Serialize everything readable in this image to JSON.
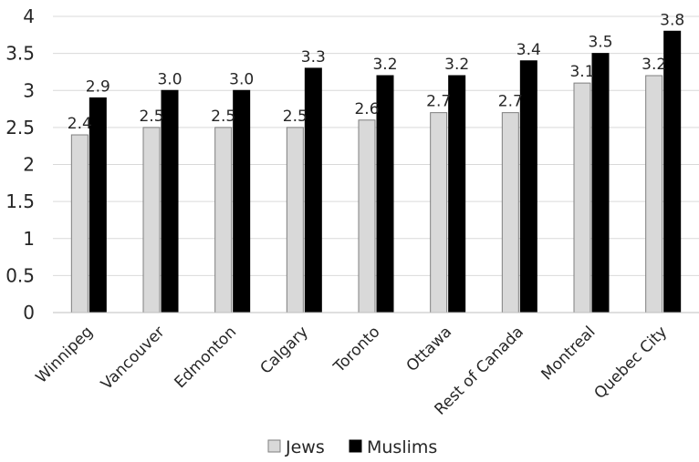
{
  "chart_data": {
    "type": "bar",
    "categories": [
      "Winnipeg",
      "Vancouver",
      "Edmonton",
      "Calgary",
      "Toronto",
      "Ottawa",
      "Rest of Canada",
      "Montreal",
      "Quebec City"
    ],
    "series": [
      {
        "name": "Jews",
        "values": [
          2.4,
          2.5,
          2.5,
          2.5,
          2.6,
          2.7,
          2.7,
          3.1,
          3.2
        ],
        "labels": [
          "2.4",
          "2.5",
          "2.5",
          "2.5",
          "2.6",
          "2.7",
          "2.7",
          "3.1",
          "3.2"
        ],
        "color": "#d9d9d9",
        "stroke": "#7f7f7f"
      },
      {
        "name": "Muslims",
        "values": [
          2.9,
          3.0,
          3.0,
          3.3,
          3.2,
          3.2,
          3.4,
          3.5,
          3.8
        ],
        "labels": [
          "2.9",
          "3.0",
          "3.0",
          "3.3",
          "3.2",
          "3.2",
          "3.4",
          "3.5",
          "3.8"
        ],
        "color": "#000000",
        "stroke": "#000000"
      }
    ],
    "yticks": [
      "0",
      "0.5",
      "1",
      "1.5",
      "2",
      "2.5",
      "3",
      "3.5",
      "4"
    ],
    "ylim": [
      0,
      4
    ],
    "grid": true,
    "legend": "bottom",
    "title": "",
    "xlabel": "",
    "ylabel": ""
  }
}
